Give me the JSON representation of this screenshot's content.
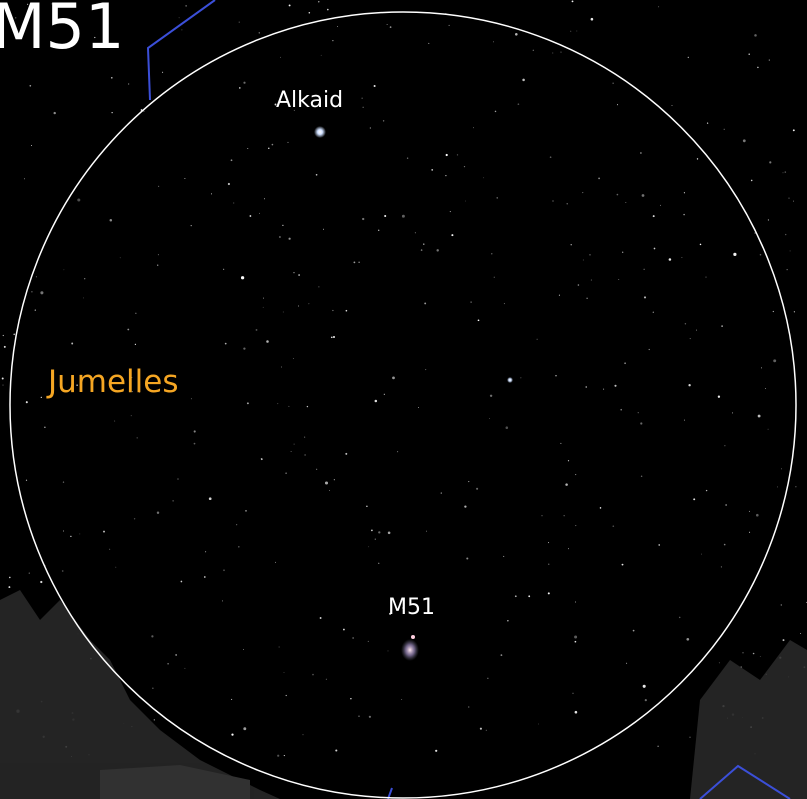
{
  "title": "M51",
  "objects": [
    {
      "label": "Alkaid"
    },
    {
      "label": "M51"
    }
  ],
  "field_of_view": {
    "label": "Jumelles"
  }
}
